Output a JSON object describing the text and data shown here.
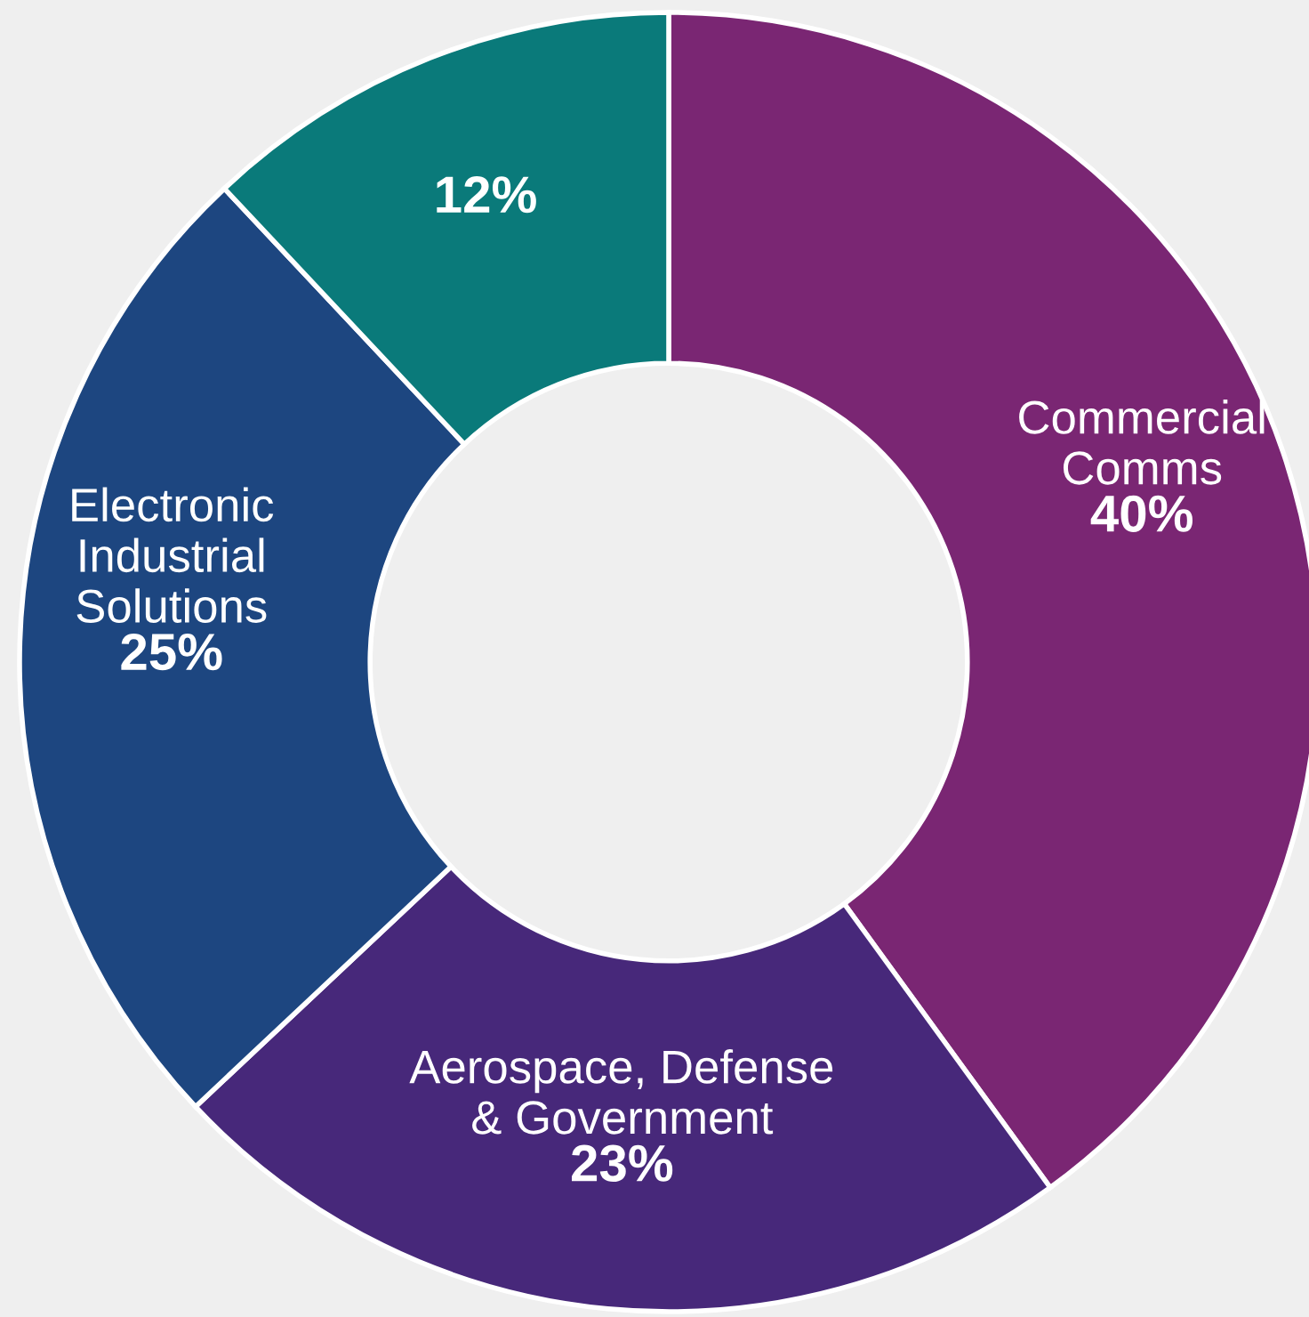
{
  "chart_data": {
    "type": "donut",
    "categories": [
      "Commercial\nComms",
      "Aerospace, Defense\n& Government",
      "Electronic\nIndustrial\nSolutions",
      null
    ],
    "values": [
      40,
      23,
      25,
      12
    ],
    "value_labels": [
      "40%",
      "23%",
      "25%",
      "12%"
    ],
    "colors": [
      "#7a2673",
      "#47287a",
      "#1d4680",
      "#0a7a7a"
    ],
    "legend": false
  }
}
